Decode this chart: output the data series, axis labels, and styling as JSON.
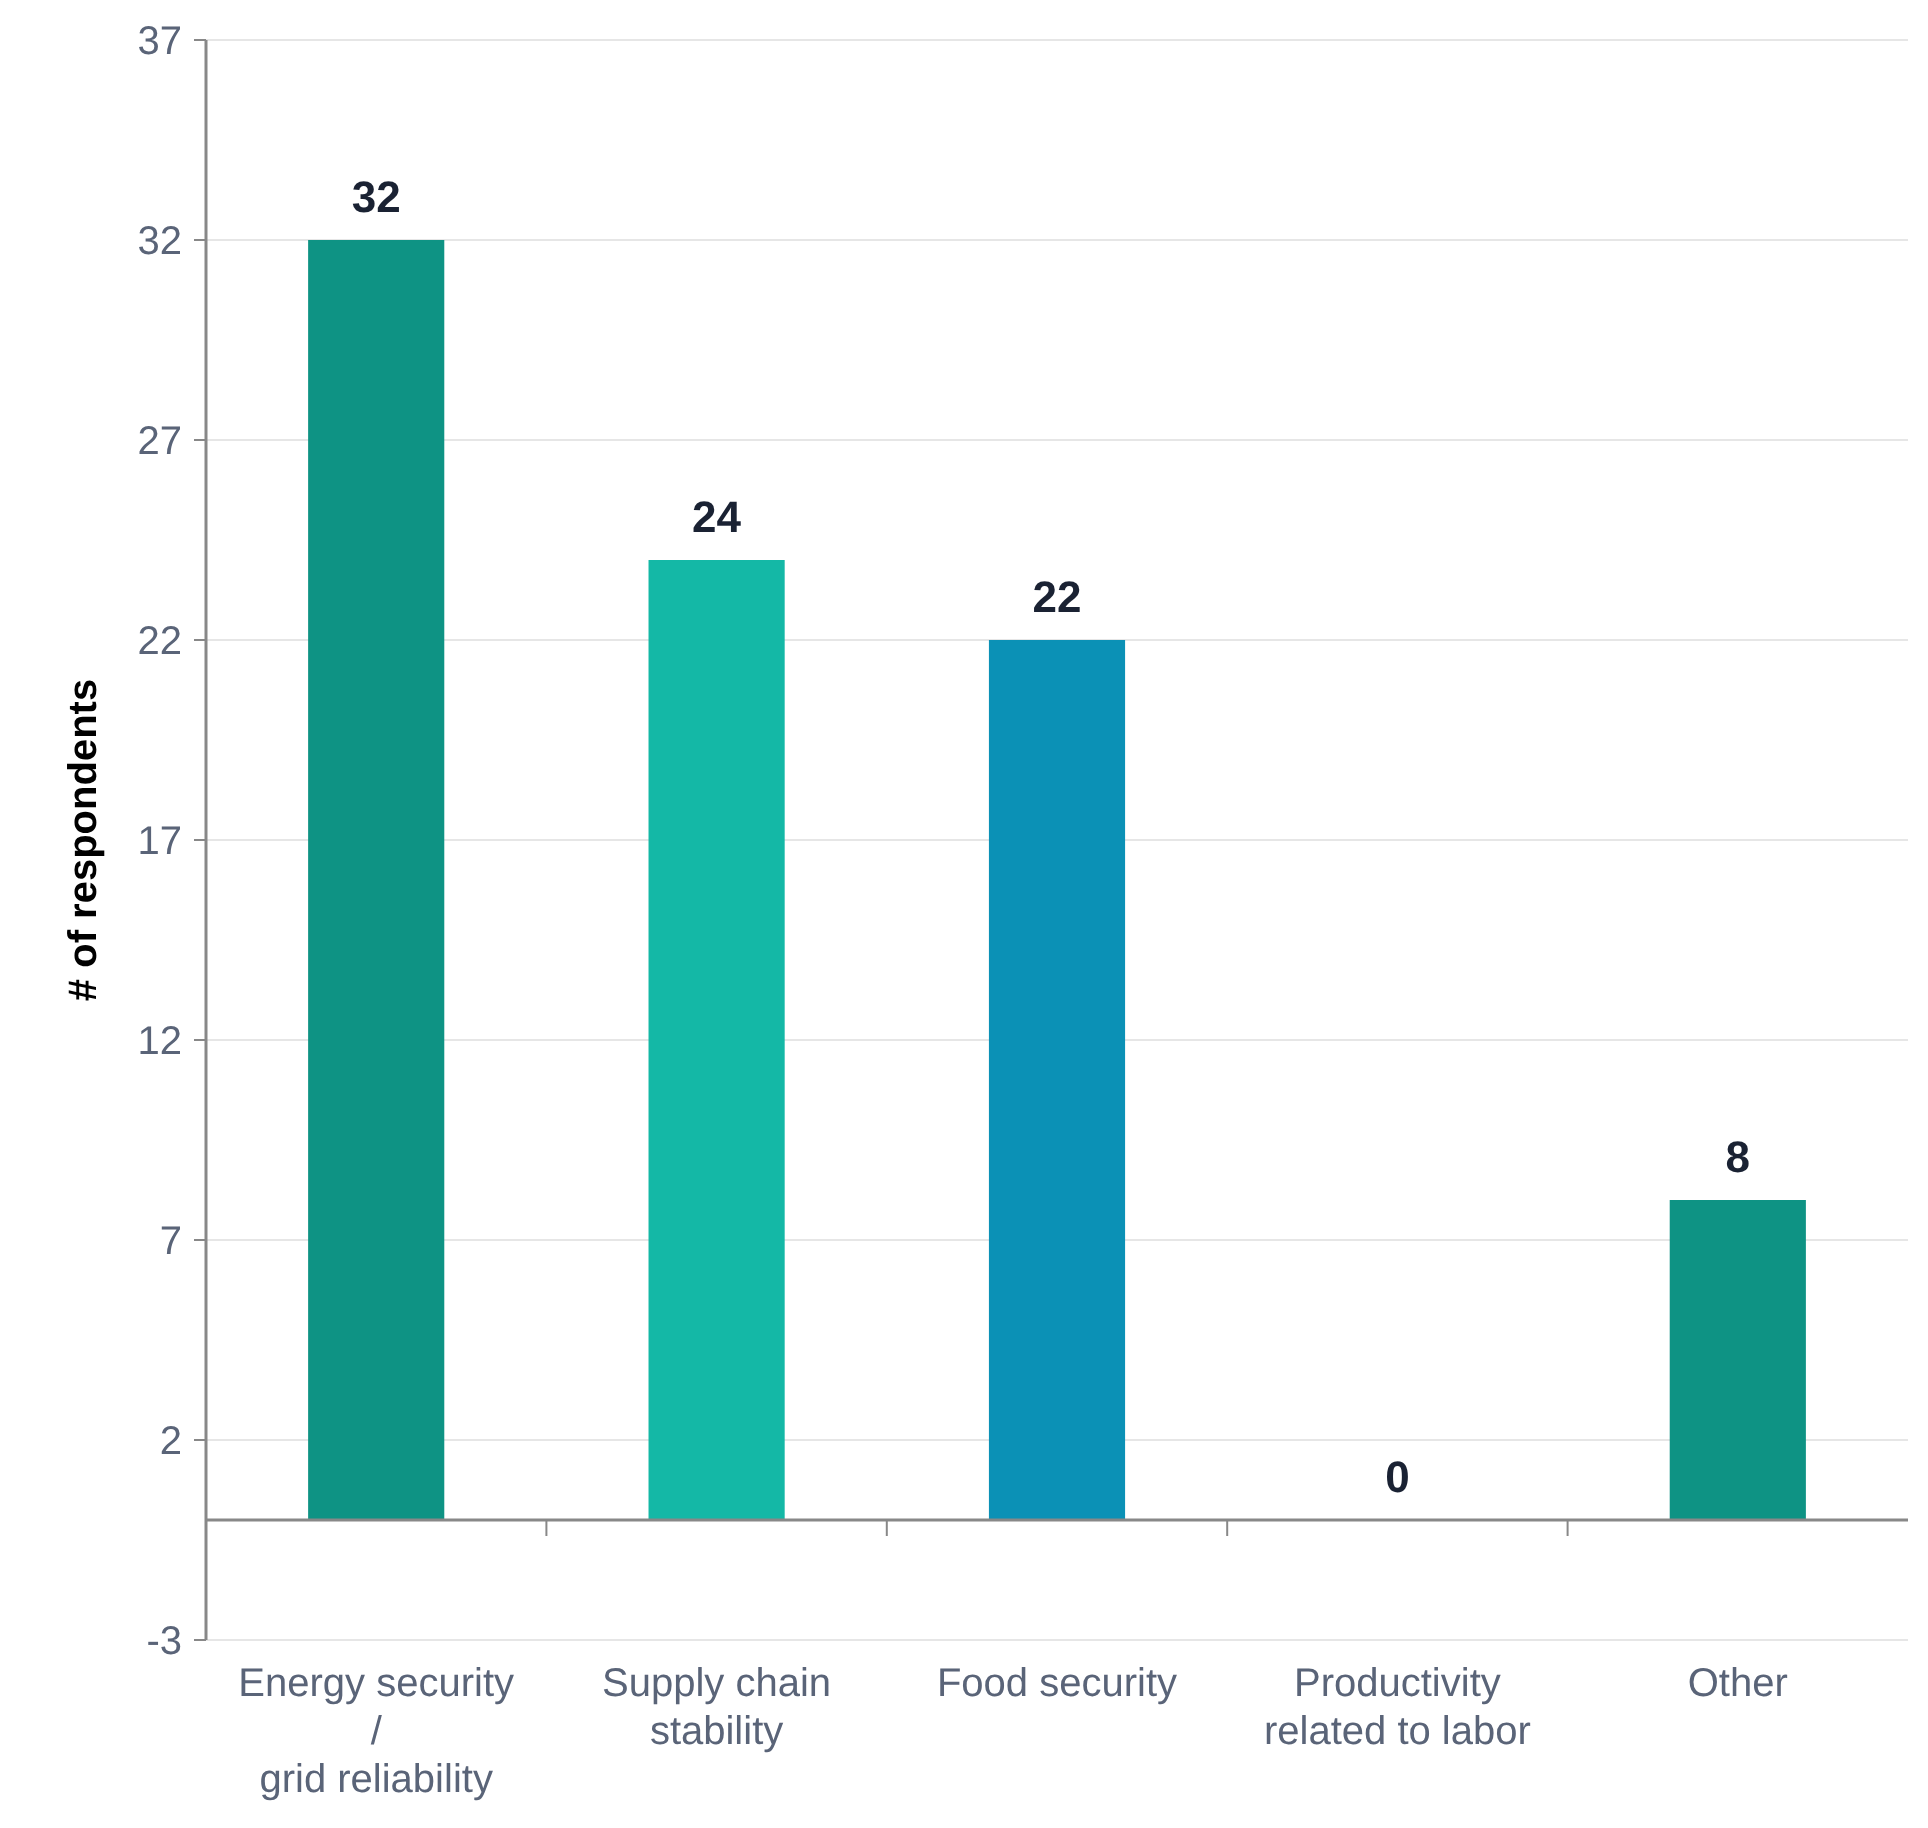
{
  "chart_data": {
    "type": "bar",
    "ylabel": "# of respondents",
    "categories": [
      "Energy security\n/\ngrid reliability",
      "Supply chain\nstability",
      "Food security",
      "Productivity\nrelated to labor",
      "Other"
    ],
    "values": [
      32,
      24,
      22,
      0,
      8
    ],
    "colors": [
      "#0e9384",
      "#14b8a6",
      "#0b91b6",
      "#0e9384",
      "#0e9384"
    ],
    "ylim": [
      -3,
      37
    ],
    "yticks": [
      -3,
      2,
      7,
      12,
      17,
      22,
      27,
      32,
      37
    ],
    "grid": "y",
    "data_labels": true
  }
}
